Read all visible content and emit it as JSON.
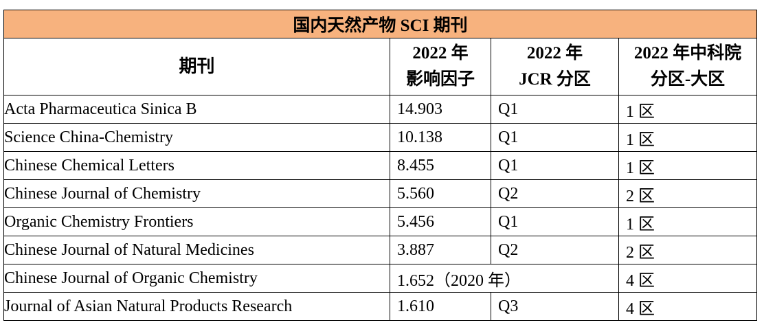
{
  "table": {
    "title": "国内天然产物 SCI 期刊",
    "headers": {
      "journal": "期刊",
      "impact_factor_line1": "2022 年",
      "impact_factor_line2": "影响因子",
      "jcr_line1": "2022 年",
      "jcr_line2": "JCR 分区",
      "cas_line1": "2022 年中科院",
      "cas_line2": "分区-大区"
    },
    "rows": [
      {
        "journal": "Acta Pharmaceutica Sinica B",
        "impact_factor": "14.903",
        "jcr": "Q1",
        "cas": "1 区"
      },
      {
        "journal": "Science China-Chemistry",
        "impact_factor": "10.138",
        "jcr": "Q1",
        "cas": "1 区"
      },
      {
        "journal": "Chinese Chemical Letters",
        "impact_factor": "8.455",
        "jcr": "Q1",
        "cas": "1 区"
      },
      {
        "journal": "Chinese Journal of Chemistry",
        "impact_factor": "5.560",
        "jcr": "Q2",
        "cas": "2 区"
      },
      {
        "journal": "Organic Chemistry Frontiers",
        "impact_factor": "5.456",
        "jcr": "Q1",
        "cas": "1 区"
      },
      {
        "journal": "Chinese Journal of Natural Medicines",
        "impact_factor": "3.887",
        "jcr": "Q2",
        "cas": "2 区"
      },
      {
        "journal": "Chinese Journal of Organic Chemistry",
        "impact_factor_merged": "1.652（2020 年）",
        "cas": "4 区"
      },
      {
        "journal": "Journal of Asian Natural Products Research",
        "impact_factor": "1.610",
        "jcr": "Q3",
        "cas": "4 区"
      }
    ],
    "title_bg_color": "#f7b27e"
  }
}
